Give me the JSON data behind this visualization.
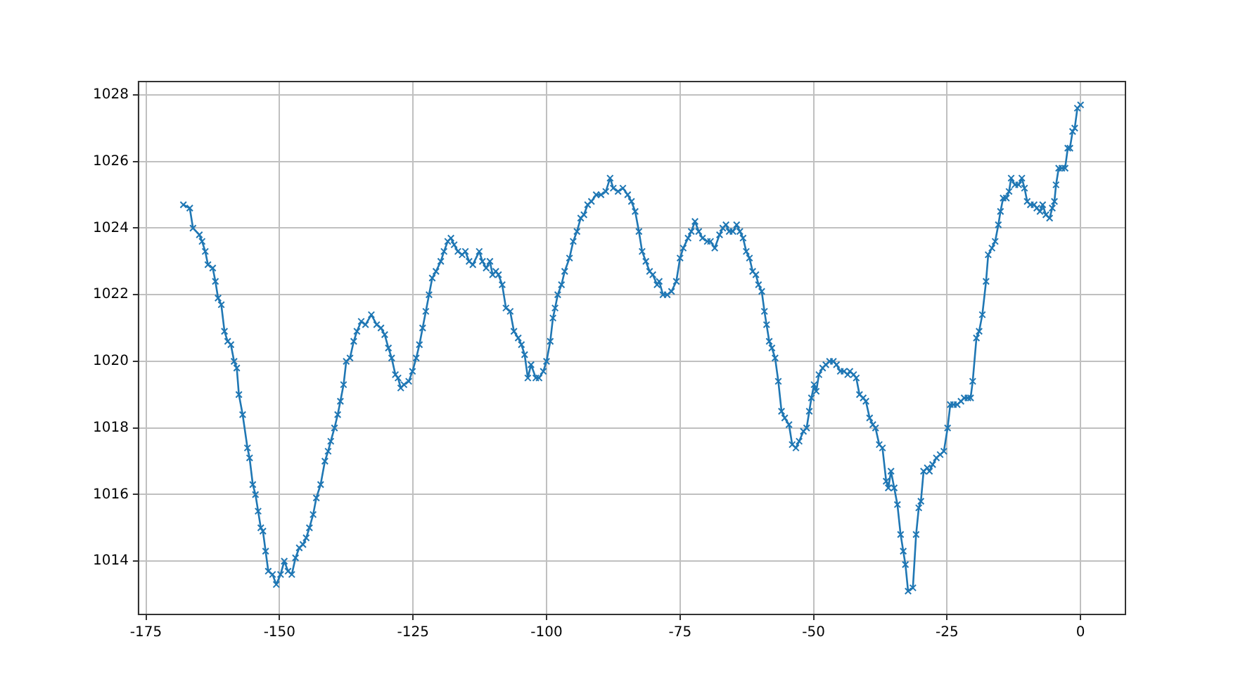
{
  "chart_data": {
    "type": "line",
    "marker": "cross",
    "grid": true,
    "legend": false,
    "xlim": [
      -176.4,
      8.4
    ],
    "ylim": [
      1012.4,
      1028.4
    ],
    "xticks": [
      -175,
      -150,
      -125,
      -100,
      -75,
      -50,
      -25,
      0
    ],
    "yticks": [
      1014,
      1016,
      1018,
      1020,
      1022,
      1024,
      1026,
      1028
    ],
    "series": [
      {
        "color": "#1f77b4",
        "x": [
          -168,
          -166.8,
          -166.2,
          -165,
          -164.5,
          -163.9,
          -163.4,
          -162.5,
          -162,
          -161.5,
          -160.9,
          -160.3,
          -159.7,
          -159.1,
          -158.5,
          -158,
          -157.6,
          -156.9,
          -156,
          -155.6,
          -155,
          -154.5,
          -154,
          -153.5,
          -153.1,
          -152.6,
          -152.1,
          -151.3,
          -150.6,
          -149.8,
          -149.1,
          -148.4,
          -147.7,
          -147,
          -146.3,
          -145.6,
          -145,
          -144.4,
          -143.7,
          -143.1,
          -142.3,
          -141.5,
          -140.9,
          -140.4,
          -139.7,
          -139.1,
          -138.6,
          -138,
          -137.5,
          -136.8,
          -136.1,
          -135.5,
          -134.7,
          -133.9,
          -132.8,
          -131.8,
          -131,
          -130.3,
          -129.6,
          -129,
          -128.3,
          -127.8,
          -127.3,
          -126.7,
          -125.8,
          -125.1,
          -124.4,
          -123.8,
          -123.2,
          -122.6,
          -122,
          -121.4,
          -120.7,
          -119.8,
          -119.2,
          -118.5,
          -117.9,
          -117.3,
          -116.6,
          -115.8,
          -115.2,
          -114.5,
          -113.8,
          -112.6,
          -112,
          -111.3,
          -110.6,
          -110.1,
          -109.5,
          -109,
          -108.3,
          -107.6,
          -106.8,
          -106.1,
          -105.3,
          -104.7,
          -104.1,
          -103.5,
          -102.9,
          -102,
          -101.4,
          -100.6,
          -100,
          -99.3,
          -98.8,
          -98.4,
          -97.9,
          -97.2,
          -96.6,
          -95.7,
          -95,
          -94.3,
          -93.6,
          -93,
          -92.3,
          -91.6,
          -90.7,
          -89.8,
          -88.9,
          -88.1,
          -87.5,
          -86.6,
          -85.7,
          -84.8,
          -84.1,
          -83.4,
          -82.7,
          -82.1,
          -81.4,
          -80.7,
          -80.1,
          -79.3,
          -78.9,
          -78.2,
          -77.4,
          -76.6,
          -75.7,
          -75,
          -74.4,
          -73.5,
          -72.9,
          -72.2,
          -71.5,
          -70.8,
          -69.9,
          -69.3,
          -68.5,
          -67.6,
          -67,
          -66.4,
          -65.8,
          -65.1,
          -64.4,
          -63.8,
          -63.2,
          -62.6,
          -62,
          -61.4,
          -60.8,
          -60.3,
          -59.7,
          -59.2,
          -58.8,
          -58.3,
          -57.8,
          -57.2,
          -56.6,
          -56,
          -55.4,
          -54.6,
          -54,
          -53.3,
          -52.7,
          -51.9,
          -51.3,
          -50.8,
          -50.4,
          -49.9,
          -49.5,
          -49,
          -48.3,
          -47.7,
          -47,
          -46.3,
          -45.7,
          -45,
          -44.3,
          -43.6,
          -43.2,
          -42.5,
          -42,
          -41.4,
          -40.7,
          -40.2,
          -39.5,
          -38.9,
          -38.4,
          -37.7,
          -37.1,
          -36.4,
          -36,
          -35.5,
          -34.9,
          -34.3,
          -33.7,
          -33.2,
          -32.8,
          -32.3,
          -31.4,
          -30.8,
          -30.3,
          -29.9,
          -29.4,
          -28.7,
          -28.3,
          -27.7,
          -27,
          -26.3,
          -25.6,
          -24.9,
          -24.4,
          -23.8,
          -23.1,
          -22.4,
          -21.8,
          -21.1,
          -20.6,
          -20.2,
          -19.5,
          -19,
          -18.4,
          -17.7,
          -17.3,
          -16.6,
          -16,
          -15.4,
          -15,
          -14.5,
          -13.9,
          -13.4,
          -13,
          -12.3,
          -11.6,
          -11,
          -10.5,
          -10,
          -9.4,
          -8.7,
          -8.2,
          -7.6,
          -7.1,
          -6.5,
          -5.8,
          -5.3,
          -4.9,
          -4.6,
          -4.1,
          -3.5,
          -2.9,
          -2.4,
          -2,
          -1.5,
          -1.1,
          -0.6,
          0
        ],
        "values": [
          1024.7,
          1024.6,
          1024.0,
          1023.8,
          1023.6,
          1023.3,
          1022.9,
          1022.8,
          1022.4,
          1021.9,
          1021.7,
          1020.9,
          1020.6,
          1020.5,
          1020.0,
          1019.8,
          1019.0,
          1018.4,
          1017.4,
          1017.1,
          1016.3,
          1016.0,
          1015.5,
          1015.0,
          1014.9,
          1014.3,
          1013.7,
          1013.6,
          1013.3,
          1013.6,
          1014.0,
          1013.7,
          1013.6,
          1014.1,
          1014.4,
          1014.5,
          1014.7,
          1015.0,
          1015.4,
          1015.9,
          1016.3,
          1017.0,
          1017.3,
          1017.6,
          1018.0,
          1018.4,
          1018.8,
          1019.3,
          1020.0,
          1020.1,
          1020.6,
          1020.9,
          1021.2,
          1021.1,
          1021.4,
          1021.1,
          1021.0,
          1020.8,
          1020.4,
          1020.1,
          1019.6,
          1019.5,
          1019.2,
          1019.3,
          1019.4,
          1019.7,
          1020.1,
          1020.5,
          1021.0,
          1021.5,
          1022.0,
          1022.5,
          1022.7,
          1023.0,
          1023.3,
          1023.6,
          1023.7,
          1023.5,
          1023.3,
          1023.2,
          1023.3,
          1023.0,
          1022.9,
          1023.3,
          1023.0,
          1022.8,
          1023.0,
          1022.6,
          1022.7,
          1022.6,
          1022.3,
          1021.6,
          1021.5,
          1020.9,
          1020.7,
          1020.5,
          1020.2,
          1019.5,
          1019.9,
          1019.5,
          1019.5,
          1019.7,
          1020.0,
          1020.6,
          1021.3,
          1021.6,
          1022.0,
          1022.3,
          1022.7,
          1023.1,
          1023.6,
          1023.9,
          1024.3,
          1024.4,
          1024.7,
          1024.8,
          1025.0,
          1025.0,
          1025.1,
          1025.5,
          1025.2,
          1025.1,
          1025.2,
          1025.0,
          1024.8,
          1024.5,
          1023.9,
          1023.3,
          1023.0,
          1022.7,
          1022.6,
          1022.3,
          1022.4,
          1022.0,
          1022.0,
          1022.1,
          1022.4,
          1023.1,
          1023.4,
          1023.7,
          1023.9,
          1024.2,
          1023.9,
          1023.7,
          1023.6,
          1023.6,
          1023.4,
          1023.8,
          1024.0,
          1024.1,
          1023.9,
          1023.9,
          1024.1,
          1023.9,
          1023.7,
          1023.3,
          1023.1,
          1022.7,
          1022.6,
          1022.3,
          1022.1,
          1021.5,
          1021.1,
          1020.6,
          1020.4,
          1020.1,
          1019.4,
          1018.5,
          1018.3,
          1018.1,
          1017.5,
          1017.4,
          1017.6,
          1017.9,
          1018.0,
          1018.5,
          1018.9,
          1019.3,
          1019.1,
          1019.6,
          1019.8,
          1019.9,
          1020.0,
          1020.0,
          1019.9,
          1019.7,
          1019.7,
          1019.6,
          1019.7,
          1019.6,
          1019.5,
          1019.0,
          1018.9,
          1018.8,
          1018.3,
          1018.1,
          1018.0,
          1017.5,
          1017.4,
          1016.4,
          1016.2,
          1016.7,
          1016.2,
          1015.7,
          1014.8,
          1014.3,
          1013.9,
          1013.1,
          1013.2,
          1014.8,
          1015.6,
          1015.8,
          1016.7,
          1016.8,
          1016.7,
          1016.9,
          1017.1,
          1017.2,
          1017.3,
          1018.0,
          1018.7,
          1018.7,
          1018.7,
          1018.8,
          1018.9,
          1018.9,
          1018.9,
          1019.4,
          1020.7,
          1020.9,
          1021.4,
          1022.4,
          1023.2,
          1023.4,
          1023.6,
          1024.1,
          1024.5,
          1024.9,
          1024.9,
          1025.1,
          1025.5,
          1025.3,
          1025.3,
          1025.5,
          1025.2,
          1024.8,
          1024.7,
          1024.7,
          1024.6,
          1024.5,
          1024.7,
          1024.4,
          1024.3,
          1024.6,
          1024.8,
          1025.3,
          1025.8,
          1025.8,
          1025.8,
          1026.4,
          1026.4,
          1026.9,
          1027.0,
          1027.6,
          1027.7
        ]
      }
    ]
  }
}
